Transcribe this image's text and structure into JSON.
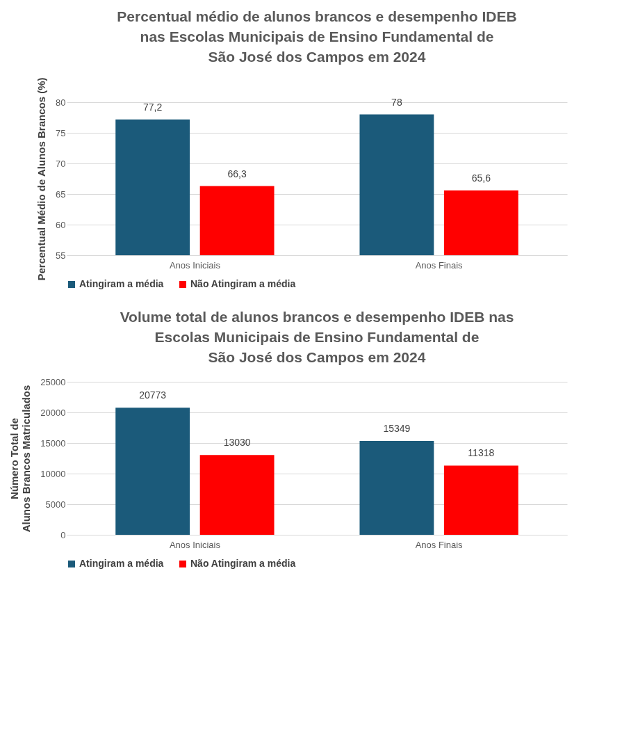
{
  "chart_data": [
    {
      "type": "bar",
      "title": "Percentual médio de alunos brancos e desempenho IDEB\nnas Escolas Municipais de Ensino Fundamental de\nSão José dos Campos em 2024",
      "ylabel": "Percentual Médio de Alunos Brancos (%)",
      "categories": [
        "Anos Iniciais",
        "Anos Finais"
      ],
      "series": [
        {
          "name": "Atingiram a média",
          "color": "#1b5a7a",
          "values": [
            77.2,
            78
          ],
          "value_labels": [
            "77,2",
            "78"
          ]
        },
        {
          "name": "Não Atingiram a média",
          "color": "#ff0000",
          "values": [
            66.3,
            65.6
          ],
          "value_labels": [
            "66,3",
            "65,6"
          ]
        }
      ],
      "ylim": [
        55,
        80
      ],
      "yticks": [
        55,
        60,
        65,
        70,
        75,
        80
      ],
      "grid": "y",
      "legend": "bottom"
    },
    {
      "type": "bar",
      "title": "Volume total de alunos brancos e desempenho IDEB nas\nEscolas Municipais de Ensino Fundamental de\nSão José dos Campos em 2024",
      "ylabel": "Número Total de\nAlunos Brancos Matriculados",
      "categories": [
        "Anos Iniciais",
        "Anos Finais"
      ],
      "series": [
        {
          "name": "Atingiram a média",
          "color": "#1b5a7a",
          "values": [
            20773,
            15349
          ]
        },
        {
          "name": "Não Atingiram a média",
          "color": "#ff0000",
          "values": [
            13030,
            11318
          ]
        }
      ],
      "ylim": [
        0,
        25000
      ],
      "yticks": [
        0,
        5000,
        10000,
        15000,
        20000,
        25000
      ],
      "grid": "y",
      "legend": "bottom",
      "data_labels": true
    }
  ]
}
